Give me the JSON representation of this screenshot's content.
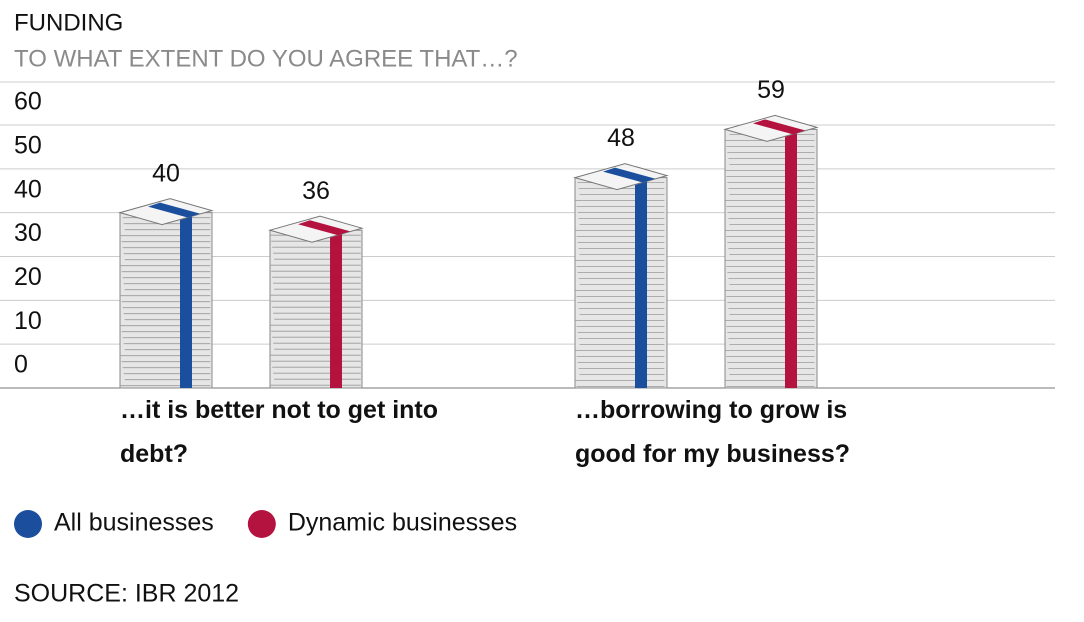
{
  "chart_data": {
    "type": "bar",
    "title": "FUNDING",
    "subtitle": "TO WHAT EXTENT DO YOU AGREE THAT…?",
    "categories": [
      "…it is better not to get into debt?",
      "…borrowing to grow is good for my business?"
    ],
    "series": [
      {
        "name": "All businesses",
        "color": "#1b4f9e",
        "values": [
          40,
          48
        ]
      },
      {
        "name": "Dynamic businesses",
        "color": "#b5133f",
        "values": [
          36,
          59
        ]
      }
    ],
    "ylim": [
      0,
      60
    ],
    "yticks": [
      0,
      10,
      20,
      30,
      40,
      50,
      60
    ],
    "grid": true,
    "source": "SOURCE: IBR 2012"
  }
}
